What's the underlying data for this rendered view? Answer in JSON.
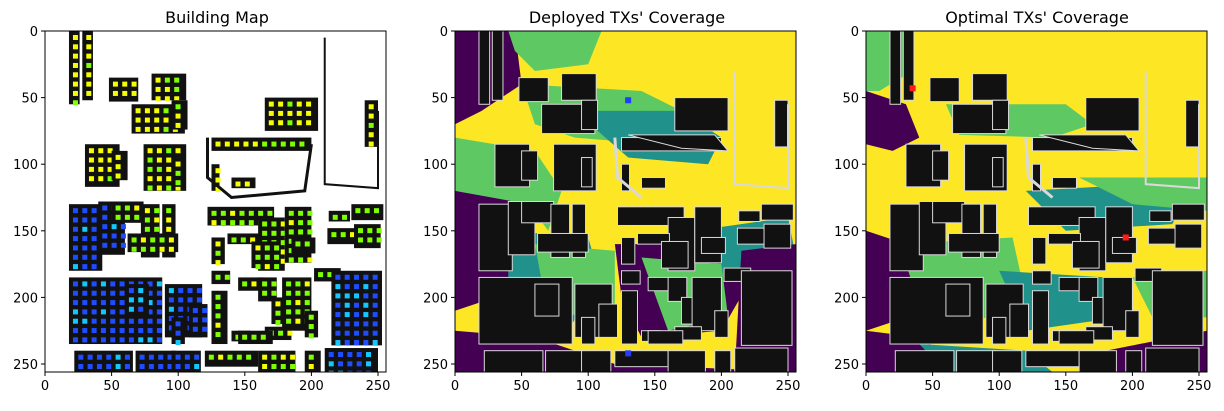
{
  "figure": {
    "panels": [
      {
        "title": "Building Map",
        "tx_markers": []
      },
      {
        "title": "Deployed TXs' Coverage",
        "tx_markers": [
          [
            130,
            52
          ],
          [
            130,
            242
          ]
        ],
        "tx_color": "#1f3cff"
      },
      {
        "title": "Optimal TXs' Coverage",
        "tx_markers": [
          [
            35,
            43
          ],
          [
            195,
            155
          ]
        ],
        "tx_color": "#ff1a1a"
      }
    ],
    "axis_ticks": {
      "x": [
        0,
        50,
        100,
        150,
        200,
        250
      ],
      "y": [
        0,
        50,
        100,
        150,
        200,
        250
      ]
    },
    "axis_range": {
      "x": [
        0,
        256
      ],
      "y": [
        0,
        256
      ]
    },
    "colors": {
      "building": "#111111",
      "building_outline": "#d9d9d9",
      "coverage_high": "#fde725",
      "coverage_mid": "#5ec962",
      "coverage_low": "#21918c",
      "coverage_none": "#440154",
      "map_background": "#ffffff",
      "marker_lime": "#7fff00",
      "marker_yellow": "#f5ff00",
      "marker_blue": "#1f4cff",
      "marker_cyan": "#14c8ff"
    }
  }
}
